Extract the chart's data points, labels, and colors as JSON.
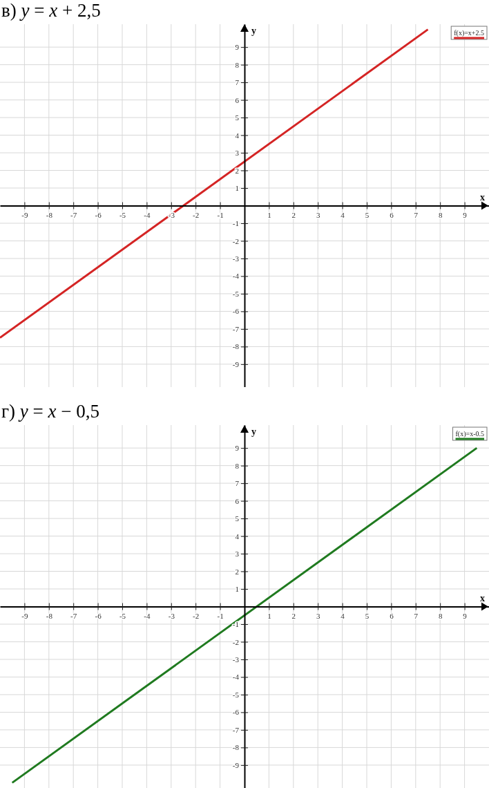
{
  "chart_data": [
    {
      "type": "line",
      "title": "в) y = x + 2,5",
      "xlabel": "x",
      "ylabel": "y",
      "x": [
        -10,
        7.5
      ],
      "series": [
        {
          "name": "f(x)=x+2.5",
          "color": "#d42424",
          "values": [
            -7.5,
            10
          ]
        }
      ],
      "xlim": [
        -10,
        10
      ],
      "ylim": [
        -10.3,
        10.3
      ],
      "xticks": [
        -9,
        -8,
        -7,
        -6,
        -5,
        -4,
        -3,
        -2,
        -1,
        1,
        2,
        3,
        4,
        5,
        6,
        7,
        8,
        9
      ],
      "yticks": [
        -9,
        -8,
        -7,
        -6,
        -5,
        -4,
        -3,
        -2,
        -1,
        1,
        2,
        3,
        4,
        5,
        6,
        7,
        8,
        9
      ],
      "grid": true,
      "legend": "top right"
    },
    {
      "type": "line",
      "title": "г) y = x − 0,5",
      "xlabel": "x",
      "ylabel": "y",
      "x": [
        -9.5,
        9.5
      ],
      "series": [
        {
          "name": "f(x)=x-0.5",
          "color": "#1f7a1f",
          "values": [
            -10,
            9
          ]
        }
      ],
      "xlim": [
        -10,
        10
      ],
      "ylim": [
        -10.3,
        10.3
      ],
      "xticks": [
        -9,
        -8,
        -7,
        -6,
        -5,
        -4,
        -3,
        -2,
        -1,
        1,
        2,
        3,
        4,
        5,
        6,
        7,
        8,
        9
      ],
      "yticks": [
        -9,
        -8,
        -7,
        -6,
        -5,
        -4,
        -3,
        -2,
        -1,
        1,
        2,
        3,
        4,
        5,
        6,
        7,
        8,
        9
      ],
      "grid": true,
      "legend": "top right"
    }
  ]
}
